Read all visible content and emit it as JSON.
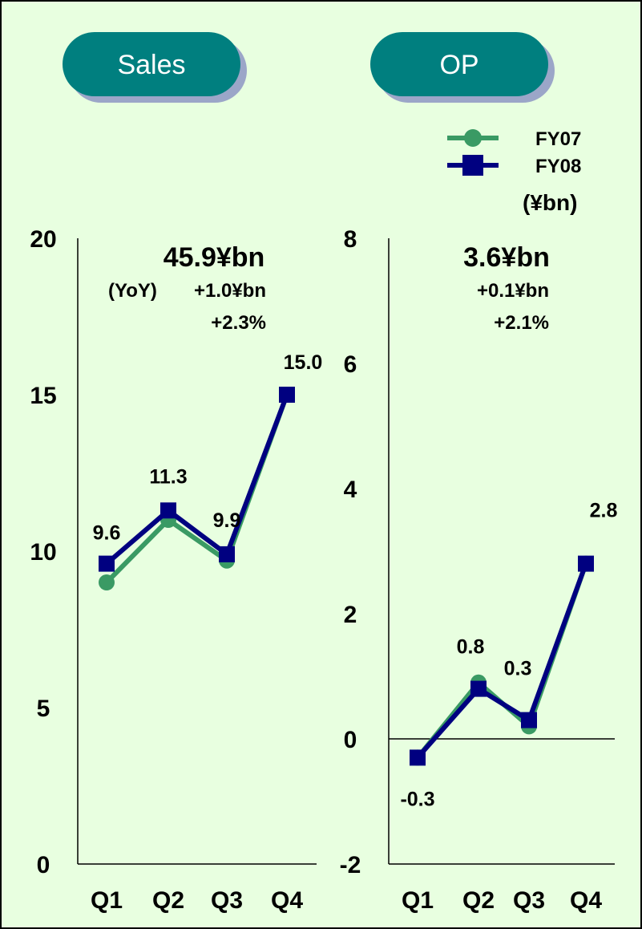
{
  "colors": {
    "background": "#e8ffe0",
    "pill_fill": "#007f7f",
    "pill_shadow": "#9ba6c8",
    "fy07": "#3a9a64",
    "fy08": "#000080"
  },
  "legend": {
    "items": [
      "FY07",
      "FY08"
    ],
    "unit": "(¥bn)"
  },
  "chart_data": [
    {
      "type": "line",
      "title": "Sales",
      "categories": [
        "Q1",
        "Q2",
        "Q3",
        "Q4"
      ],
      "ylim": [
        0,
        20
      ],
      "yticks": [
        "0",
        "5",
        "10",
        "15",
        "20"
      ],
      "series": [
        {
          "name": "FY07",
          "values": [
            9.0,
            11.0,
            9.7,
            15.0
          ]
        },
        {
          "name": "FY08",
          "values": [
            9.6,
            11.3,
            9.9,
            15.0
          ]
        }
      ],
      "data_labels": [
        "9.6",
        "11.3",
        "9.9",
        "15.0"
      ],
      "summary": {
        "total": "45.9¥bn",
        "yoy_label": "(YoY)",
        "change": "+1.0¥bn",
        "change_pct": "+2.3%"
      },
      "zero_line": false
    },
    {
      "type": "line",
      "title": "OP",
      "categories": [
        "Q1",
        "Q2",
        "Q3",
        "Q4"
      ],
      "ylim": [
        -2,
        8
      ],
      "yticks": [
        "-2",
        "0",
        "2",
        "4",
        "6",
        "8"
      ],
      "series": [
        {
          "name": "FY07",
          "values": [
            -0.3,
            0.9,
            0.2,
            2.8
          ]
        },
        {
          "name": "FY08",
          "values": [
            -0.3,
            0.8,
            0.3,
            2.8
          ]
        }
      ],
      "data_labels": [
        "-0.3",
        "0.8",
        "0.3",
        "2.8"
      ],
      "summary": {
        "total": "3.6¥bn",
        "change": "+0.1¥bn",
        "change_pct": "+2.1%"
      },
      "zero_line": true
    }
  ]
}
